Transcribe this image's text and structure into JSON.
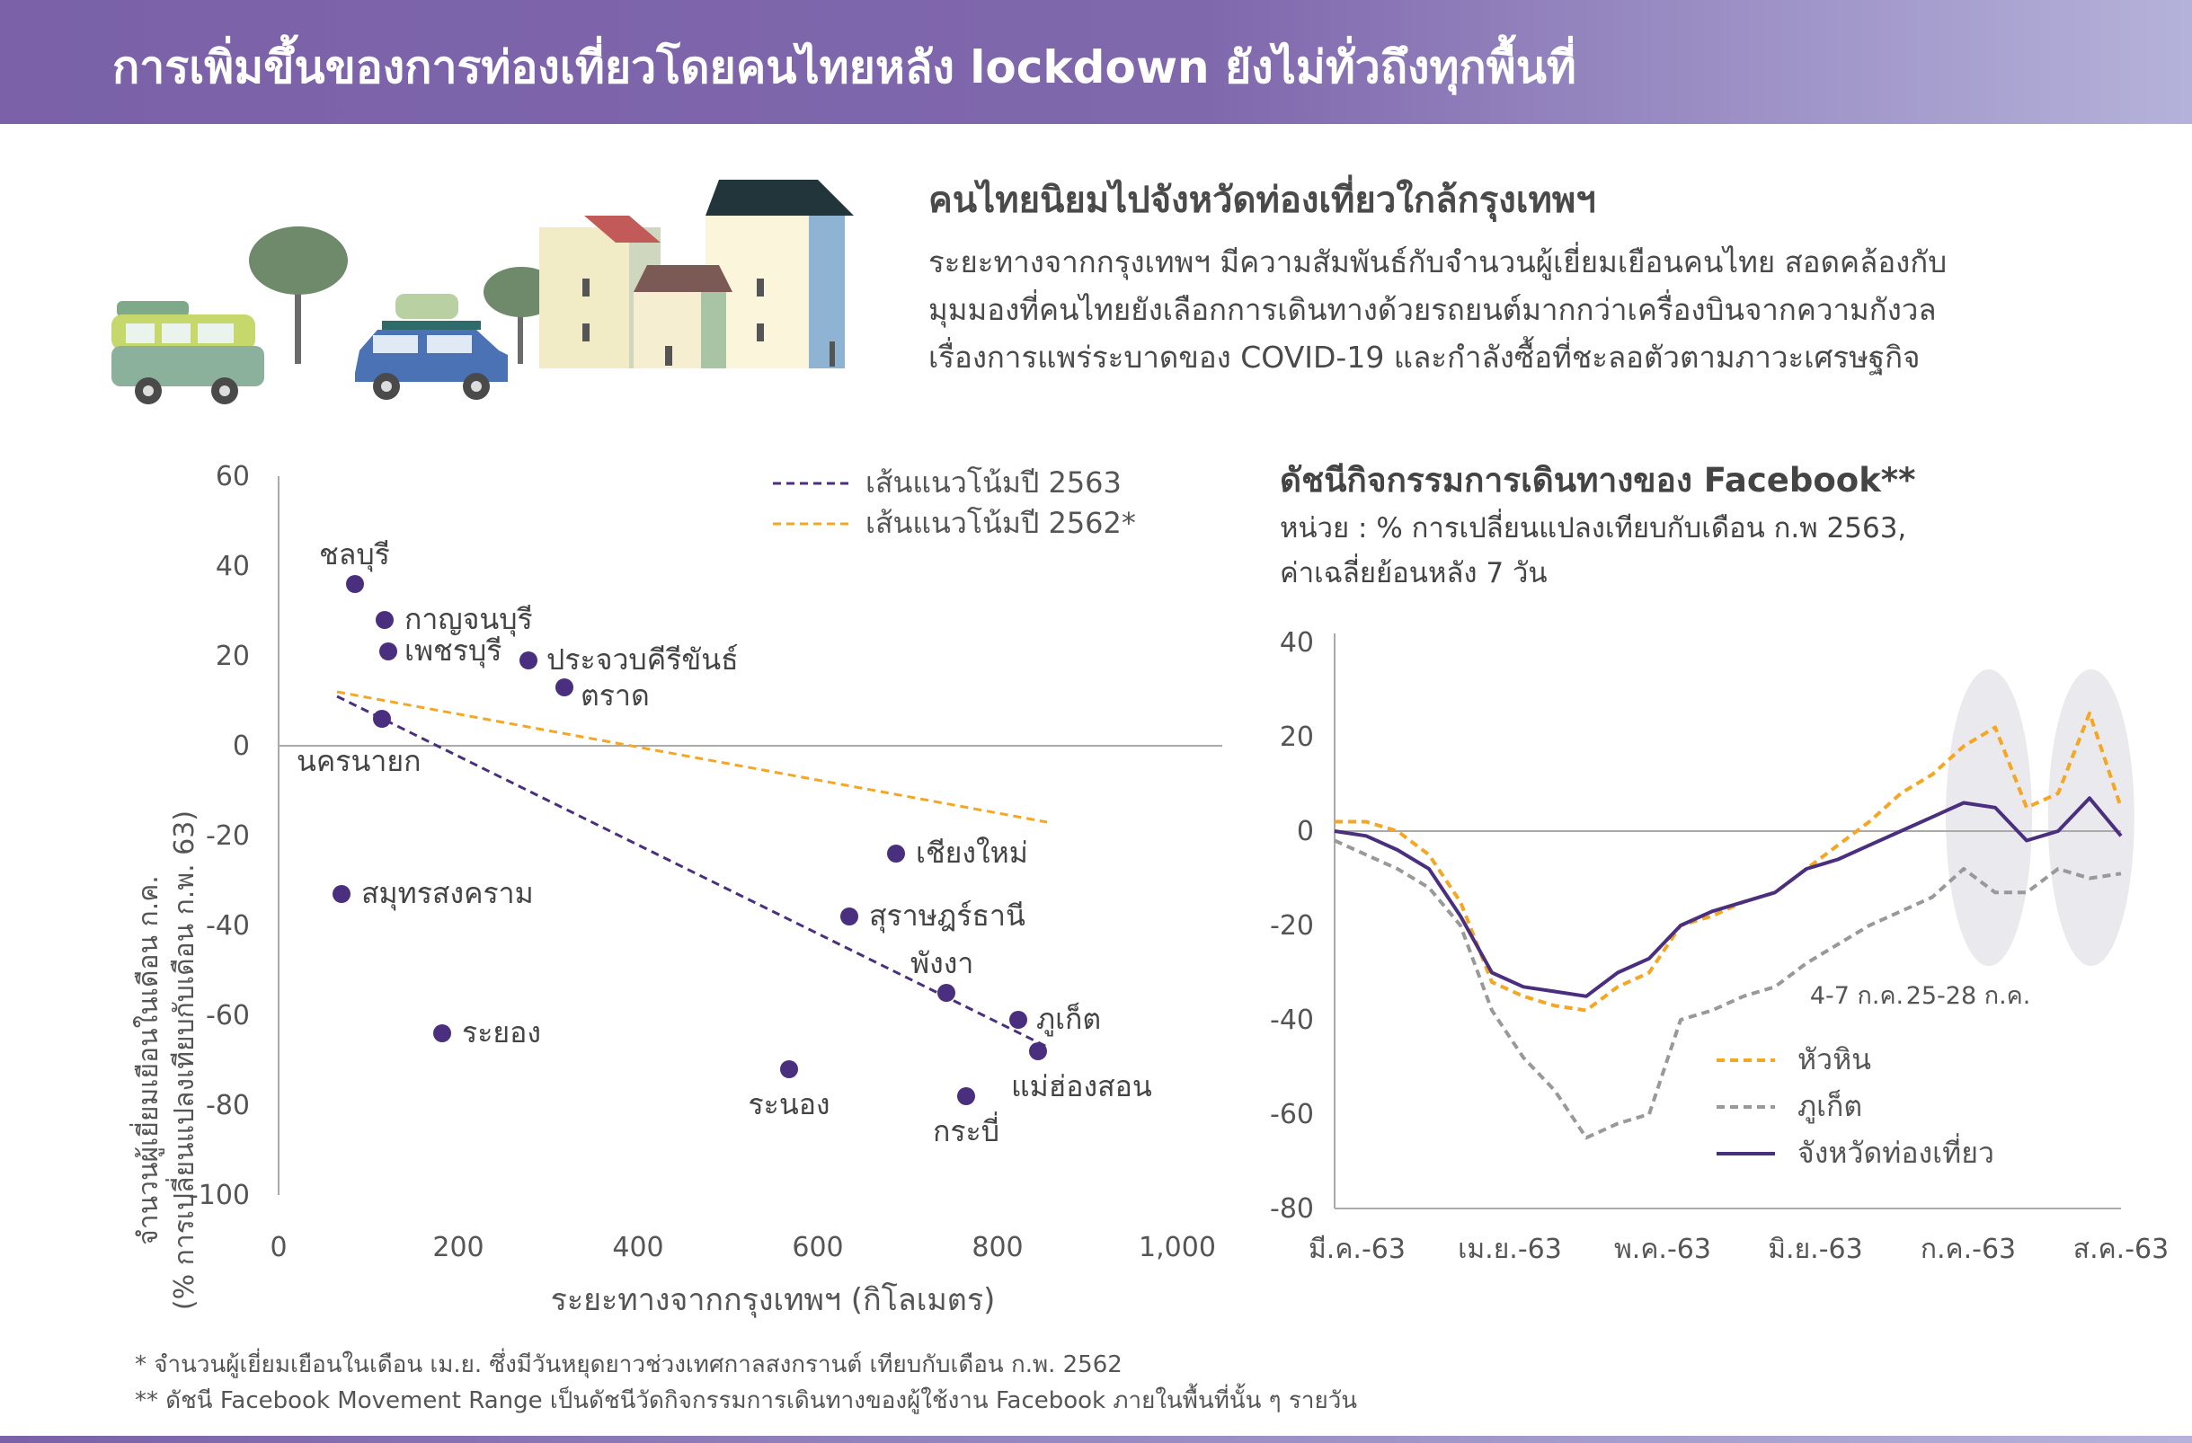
{
  "header": {
    "title": "การเพิ่มขึ้นของการท่องเที่ยวโดยคนไทยหลัง lockdown ยังไม่ทั่วถึงทุกพื้นที่"
  },
  "intro": {
    "heading": "คนไทยนิยมไปจังหวัดท่องเที่ยวใกล้กรุงเทพฯ",
    "lines": [
      "ระยะทางจากกรุงเทพฯ มีความสัมพันธ์กับจำนวนผู้เยี่ยมเยือนคนไทย สอดคล้องกับ",
      "มุมมองที่คนไทยยังเลือกการเดินทางด้วยรถยนต์มากกว่าเครื่องบินจากความกังวล",
      "เรื่องการแพร่ระบาดของ COVID-19 และกำลังซื้อที่ชะลอตัวตามภาวะเศรษฐกิจ"
    ]
  },
  "colors": {
    "purple": "#4b2f7f",
    "orange": "#f5a623",
    "gray": "#999999",
    "banner": "#7a61a8"
  },
  "illustration": {
    "icons": [
      "van-icon",
      "car-icon",
      "tree-icon",
      "house-icon"
    ]
  },
  "chart_data": [
    {
      "type": "scatter",
      "xlabel": "ระยะทางจากกรุงเทพฯ (กิโลเมตร)",
      "ylabel": [
        "จำนวนผู้เยี่ยมเยือนในเดือน ก.ค.",
        "(% การเปลี่ยนแปลงเทียบกับเดือน ก.พ. 63)"
      ],
      "xlim": [
        0,
        1000
      ],
      "ylim": [
        -100,
        60
      ],
      "xticks": [
        0,
        200,
        400,
        600,
        800,
        1000
      ],
      "xtick_labels": [
        "0",
        "200",
        "400",
        "600",
        "800",
        "1,000"
      ],
      "yticks": [
        60,
        40,
        20,
        0,
        -20,
        -40,
        -60,
        -80,
        -100
      ],
      "points": [
        {
          "label": "ชลบุรี",
          "x": 85,
          "y": 36
        },
        {
          "label": "กาญจนบุรี",
          "x": 118,
          "y": 28
        },
        {
          "label": "เพชรบุรี",
          "x": 122,
          "y": 21
        },
        {
          "label": "ประจวบคีรีขันธ์",
          "x": 278,
          "y": 19
        },
        {
          "label": "ตราด",
          "x": 318,
          "y": 13
        },
        {
          "label": "นครนายก",
          "x": 115,
          "y": 6
        },
        {
          "label": "สมุทรสงคราม",
          "x": 70,
          "y": -33
        },
        {
          "label": "ระยอง",
          "x": 182,
          "y": -64
        },
        {
          "label": "เชียงใหม่",
          "x": 687,
          "y": -24
        },
        {
          "label": "สุราษฎร์ธานี",
          "x": 635,
          "y": -38
        },
        {
          "label": "พังงา",
          "x": 743,
          "y": -55
        },
        {
          "label": "ภูเก็ต",
          "x": 823,
          "y": -61
        },
        {
          "label": "แม่ฮ่องสอน",
          "x": 845,
          "y": -68
        },
        {
          "label": "ระนอง",
          "x": 568,
          "y": -72
        },
        {
          "label": "กระบี่",
          "x": 765,
          "y": -78
        }
      ],
      "trendlines": [
        {
          "name": "เส้นแนวโน้มปี 2563",
          "x": [
            65,
            855
          ],
          "y": [
            11,
            -67
          ]
        },
        {
          "name": "เส้นแนวโน้มปี 2562*",
          "x": [
            65,
            855
          ],
          "y": [
            12,
            -17
          ]
        }
      ]
    },
    {
      "type": "line",
      "title": "ดัชนีกิจกรรมการเดินทางของ Facebook**",
      "subtitle": [
        "หน่วย : % การเปลี่ยนแปลงเทียบกับเดือน ก.พ 2563,",
        "ค่าเฉลี่ยย้อนหลัง 7 วัน"
      ],
      "ylim": [
        -80,
        40
      ],
      "yticks": [
        40,
        20,
        0,
        -20,
        -40,
        -60,
        -80
      ],
      "xticks": [
        "มี.ค.-63",
        "เม.ย.-63",
        "พ.ค.-63",
        "มิ.ย.-63",
        "ก.ค.-63",
        "ส.ค.-63"
      ],
      "x_week_index": [
        0,
        1,
        2,
        3,
        4,
        5,
        6,
        7,
        8,
        9,
        10,
        11,
        12,
        13,
        14,
        15,
        16,
        17,
        18,
        19,
        20,
        21,
        22,
        23,
        24,
        25
      ],
      "annotations": [
        "4-7 ก.ค.",
        "25-28 ก.ค."
      ],
      "series": [
        {
          "name": "หัวหิน",
          "values": [
            2,
            2,
            0,
            -5,
            -15,
            -32,
            -35,
            -37,
            -38,
            -33,
            -30,
            -20,
            -18,
            -15,
            -13,
            -8,
            -3,
            2,
            8,
            12,
            18,
            22,
            5,
            8,
            25,
            5
          ]
        },
        {
          "name": "ภูเก็ต",
          "values": [
            -2,
            -5,
            -8,
            -12,
            -20,
            -38,
            -48,
            -55,
            -65,
            -62,
            -60,
            -40,
            -38,
            -35,
            -33,
            -28,
            -24,
            -20,
            -17,
            -14,
            -8,
            -13,
            -13,
            -8,
            -10,
            -9
          ]
        },
        {
          "name": "จังหวัดท่องเที่ยว",
          "values": [
            0,
            -1,
            -4,
            -8,
            -18,
            -30,
            -33,
            -34,
            -35,
            -30,
            -27,
            -20,
            -17,
            -15,
            -13,
            -8,
            -6,
            -3,
            0,
            3,
            6,
            5,
            -2,
            0,
            7,
            -1
          ]
        }
      ]
    }
  ],
  "footnotes": [
    "*  จำนวนผู้เยี่ยมเยือนในเดือน เม.ย. ซึ่งมีวันหยุดยาวช่วงเทศกาลสงกรานต์ เทียบกับเดือน ก.พ. 2562",
    "** ดัชนี Facebook Movement Range เป็นดัชนีวัดกิจกรรมการเดินทางของผู้ใช้งาน Facebook ภายในพื้นที่นั้น ๆ รายวัน"
  ]
}
